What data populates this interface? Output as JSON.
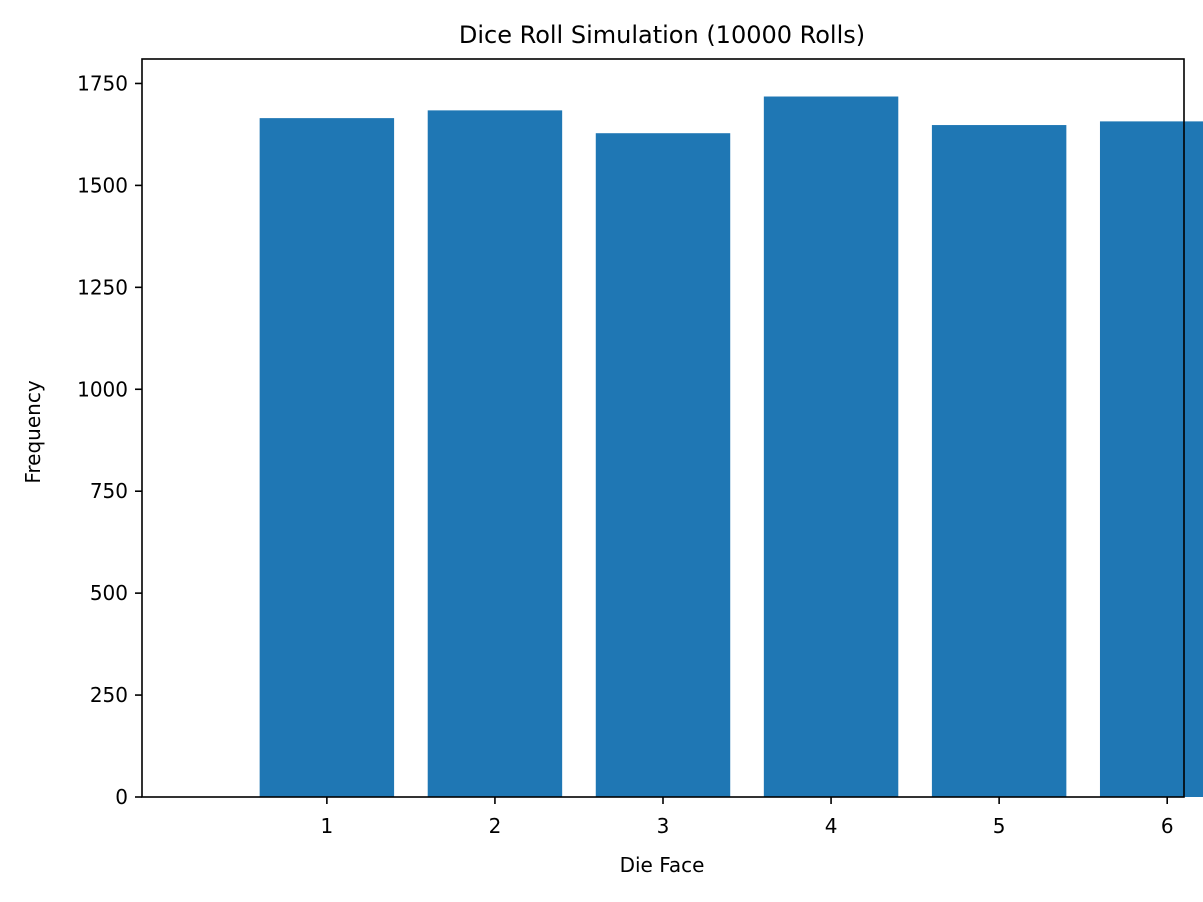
{
  "chart_data": {
    "type": "bar",
    "title": "Dice Roll Simulation (10000 Rolls)",
    "xlabel": "Die Face",
    "ylabel": "Frequency",
    "categories": [
      "1",
      "2",
      "3",
      "4",
      "5",
      "6"
    ],
    "values": [
      1665,
      1684,
      1628,
      1718,
      1648,
      1657
    ],
    "ylim": [
      0,
      1810
    ],
    "yticks": [
      0,
      250,
      500,
      750,
      1000,
      1250,
      1500,
      1750
    ],
    "grid": false,
    "legend": "none",
    "colors": {
      "bar": "#1f77b4",
      "axis": "#000000",
      "background": "#ffffff"
    }
  }
}
